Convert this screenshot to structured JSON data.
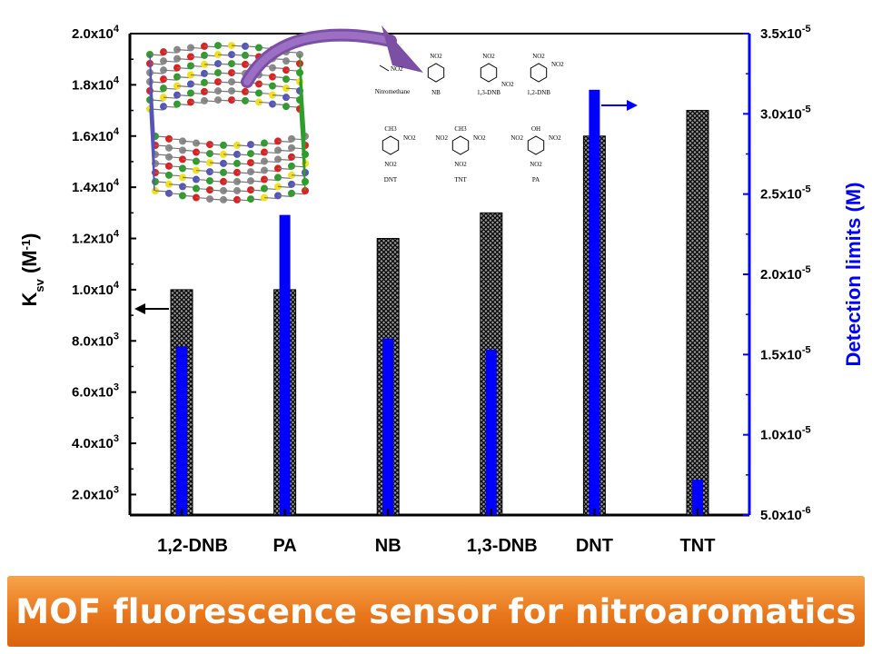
{
  "chart_data": {
    "type": "bar",
    "categories": [
      "1,2-DNB",
      "PA",
      "NB",
      "1,3-DNB",
      "DNT",
      "TNT"
    ],
    "series": [
      {
        "values": [
          10000,
          10000,
          12000,
          13000,
          16000,
          17000
        ],
        "axis": "left",
        "pattern": "black crosshatch",
        "color": "#000000"
      },
      {
        "values": [
          1.55e-05,
          2.37e-05,
          1.6e-05,
          1.53e-05,
          3.15e-05,
          7.2e-06
        ],
        "axis": "right",
        "color": "#0000ff"
      }
    ],
    "left_axis": {
      "label_main": "K",
      "label_sub": "sv",
      "label_unit_open": " (M",
      "label_sup": "-1",
      "label_unit_close": ")",
      "ylim": [
        1200,
        20000
      ],
      "ticks": [
        2000,
        4000,
        6000,
        8000,
        10000,
        12000,
        14000,
        16000,
        18000,
        20000
      ],
      "tick_labels": [
        {
          "base": "2.0x10",
          "exp": "3"
        },
        {
          "base": "4.0x10",
          "exp": "3"
        },
        {
          "base": "6.0x10",
          "exp": "3"
        },
        {
          "base": "8.0x10",
          "exp": "3"
        },
        {
          "base": "1.0x10",
          "exp": "4"
        },
        {
          "base": "1.2x10",
          "exp": "4"
        },
        {
          "base": "1.4x10",
          "exp": "4"
        },
        {
          "base": "1.6x10",
          "exp": "4"
        },
        {
          "base": "1.8x10",
          "exp": "4"
        },
        {
          "base": "2.0x10",
          "exp": "4"
        }
      ]
    },
    "right_axis": {
      "label": "Detection limits (M)",
      "ylim": [
        5e-06,
        3.5e-05
      ],
      "color": "#0000ff",
      "ticks": [
        5e-06,
        1e-05,
        1.5e-05,
        2e-05,
        2.5e-05,
        3e-05,
        3.5e-05
      ],
      "tick_labels": [
        {
          "base": "5.0x10",
          "exp": "-6"
        },
        {
          "base": "1.0x10",
          "exp": "-5"
        },
        {
          "base": "1.5x10",
          "exp": "-5"
        },
        {
          "base": "2.0x10",
          "exp": "-5"
        },
        {
          "base": "2.5x10",
          "exp": "-5"
        },
        {
          "base": "3.0x10",
          "exp": "-5"
        },
        {
          "base": "3.5x10",
          "exp": "-5"
        }
      ]
    },
    "annotations": {
      "left_arrow": "points to left axis at 1,2-DNB bar",
      "right_arrow": "points to right axis at DNT bar"
    },
    "grid": false
  },
  "molecules": [
    "Nitromethane",
    "NB",
    "1,3-DNB",
    "1,2-DNB",
    "DNT",
    "TNT",
    "PA"
  ],
  "molecule_groups": [
    "NO2",
    "CH3",
    "OH"
  ],
  "banner": {
    "text": "MOF fluorescence sensor for nitroaromatics"
  },
  "colors": {
    "banner": "#e8761b",
    "right_axis": "#0000ff",
    "hatch_bar": "#000000"
  }
}
